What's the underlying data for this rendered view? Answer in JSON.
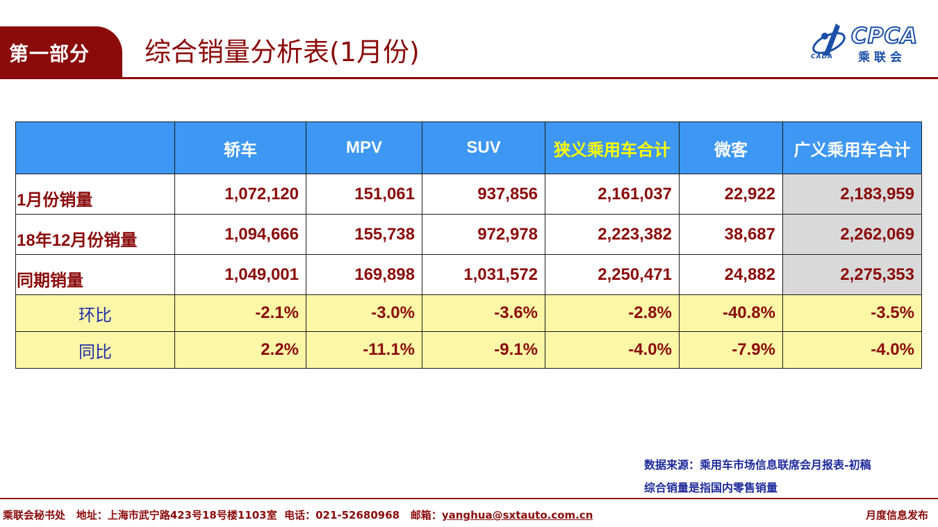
{
  "header": {
    "section_label": "第一部分",
    "title": "综合销量分析表(1月份)",
    "logo": {
      "brand": "CPCA",
      "cn_name": "乘联会",
      "sub": "CADA"
    }
  },
  "table": {
    "columns": [
      "",
      "轿车",
      "MPV",
      "SUV",
      "狭义乘用车合计",
      "微客",
      "广义乘用车合计"
    ],
    "rows": [
      {
        "label": "1月份销量",
        "cells": [
          "1,072,120",
          "151,061",
          "937,856",
          "2,161,037",
          "22,922",
          "2,183,959"
        ]
      },
      {
        "label": "18年12月份销量",
        "cells": [
          "1,094,666",
          "155,738",
          "972,978",
          "2,223,382",
          "38,687",
          "2,262,069"
        ]
      },
      {
        "label": "同期销量",
        "cells": [
          "1,049,001",
          "169,898",
          "1,031,572",
          "2,250,471",
          "24,882",
          "2,275,353"
        ]
      },
      {
        "label": "环比",
        "cells": [
          "-2.1%",
          "-3.0%",
          "-3.6%",
          "-2.8%",
          "-40.8%",
          "-3.5%"
        ]
      },
      {
        "label": "同比",
        "cells": [
          "2.2%",
          "-11.1%",
          "-9.1%",
          "-4.0%",
          "-7.9%",
          "-4.0%"
        ]
      }
    ],
    "colors": {
      "header_bg": "#3d97f3",
      "header_highlight_text": "#ffff00",
      "value_text": "#8b0a0a",
      "ratio_bg": "#fbf7a6",
      "total_bg": "#d9d9d9"
    }
  },
  "notes": {
    "source": "数据来源：乘用车市场信息联席会月报表-初稿",
    "definition": "综合销量是指国内零售销量"
  },
  "footer": {
    "org": "乘联会秘书处",
    "address": "地址：上海市武宁路423号18号楼1103室",
    "phone": "电话：021-52680968",
    "email_label": "邮箱：",
    "email": "yanghua@sxtauto.com.cn",
    "right": "月度信息发布"
  },
  "theme": {
    "accent": "#8b0a0a",
    "note_color": "#1f2a9a"
  }
}
